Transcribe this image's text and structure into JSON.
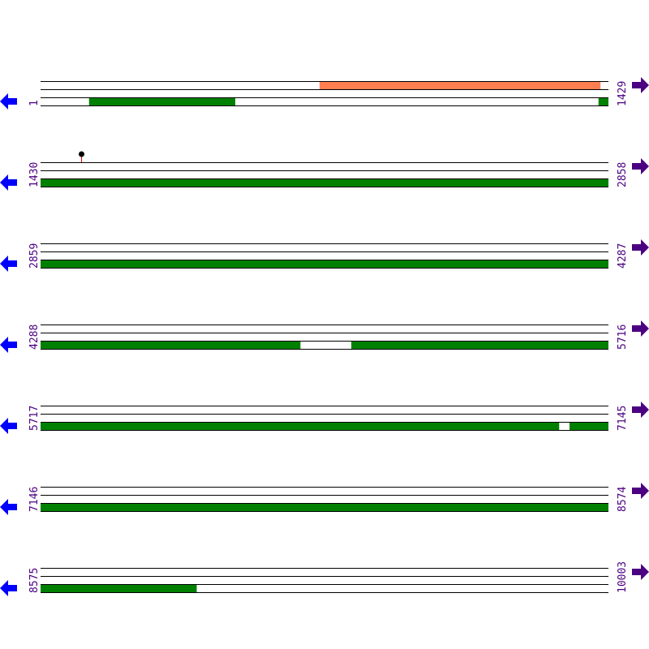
{
  "colors": {
    "track_line": "#000000",
    "feature_green": "#008000",
    "feature_orange": "#ff7f50",
    "left_arrow": "#0000ff",
    "right_arrow": "#4b0082",
    "label_text": "#4b0082",
    "marker_stem": "#ff0000",
    "marker_head": "#000000"
  },
  "icons": {
    "left": "arrow-left-icon",
    "right": "arrow-right-icon"
  },
  "rows": [
    {
      "start": "1",
      "end": "1429",
      "orange": [
        [
          703,
          1409
        ]
      ],
      "green": [
        [
          123,
          490
        ],
        [
          1405,
          1429
        ]
      ],
      "markers": []
    },
    {
      "start": "1430",
      "end": "2858",
      "orange": [],
      "green": [
        [
          1430,
          2858
        ]
      ],
      "markers": [
        1532
      ]
    },
    {
      "start": "2859",
      "end": "4287",
      "orange": [],
      "green": [
        [
          2859,
          4287
        ]
      ],
      "markers": []
    },
    {
      "start": "4288",
      "end": "5716",
      "orange": [],
      "green": [
        [
          4288,
          4941
        ],
        [
          5070,
          5716
        ]
      ],
      "markers": []
    },
    {
      "start": "5717",
      "end": "7145",
      "orange": [],
      "green": [
        [
          5717,
          7021
        ],
        [
          7048,
          7145
        ]
      ],
      "markers": []
    },
    {
      "start": "7146",
      "end": "8574",
      "orange": [],
      "green": [
        [
          7146,
          8574
        ]
      ],
      "markers": []
    },
    {
      "start": "8575",
      "end": "10003",
      "orange": [],
      "green": [
        [
          8575,
          8967
        ]
      ],
      "markers": []
    }
  ]
}
